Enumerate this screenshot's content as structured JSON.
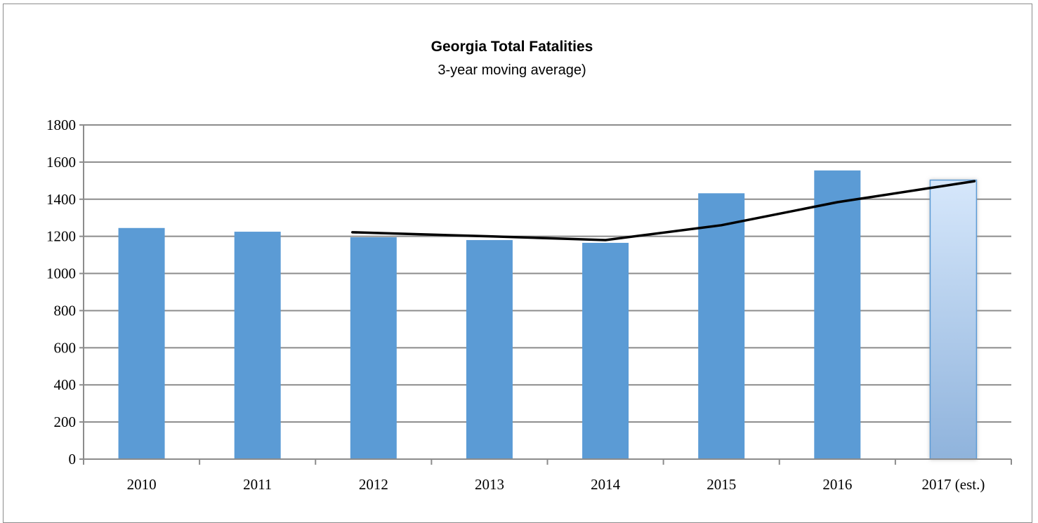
{
  "chart_data": {
    "type": "bar",
    "title": "Georgia Total Fatalities",
    "subtitle": "3-year moving average)",
    "xlabel": "",
    "ylabel": "",
    "categories": [
      "2010",
      "2011",
      "2012",
      "2013",
      "2014",
      "2015",
      "2016",
      "2017 (est.)"
    ],
    "series": [
      {
        "type": "bar",
        "values": [
          1245,
          1225,
          1195,
          1180,
          1165,
          1432,
          1555,
          1503
        ]
      },
      {
        "type": "line",
        "values": [
          null,
          null,
          1222,
          1200,
          1180,
          1260,
          1384,
          1497
        ]
      }
    ],
    "ylim": [
      0,
      1800
    ],
    "yticks": [
      0,
      200,
      400,
      600,
      800,
      1000,
      1200,
      1400,
      1600,
      1800
    ],
    "grid": true,
    "legend": "none",
    "colors": {
      "bar": "#5b9bd5",
      "bar_estimate_top": "#d6e7fb",
      "bar_estimate_bottom": "#8fb3dc",
      "line": "#000000",
      "grid": "#8c8c8c"
    }
  }
}
